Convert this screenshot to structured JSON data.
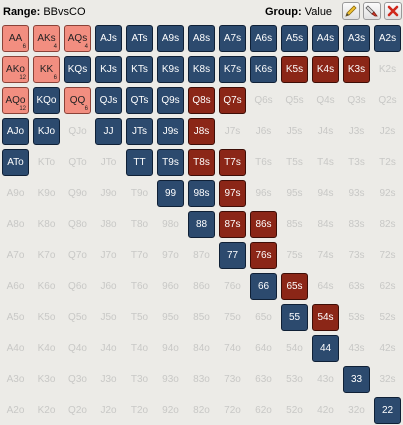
{
  "header": {
    "range_label": "Range:",
    "range_value": "BBvsCO",
    "group_label": "Group:",
    "group_value": "Value"
  },
  "tools": [
    {
      "name": "edit-tool-button",
      "icon": "pencil-icon"
    },
    {
      "name": "eraser-tool-button",
      "icon": "eraser-icon"
    },
    {
      "name": "clear-range-button",
      "icon": "close-icon"
    }
  ],
  "colors": {
    "value": "#2c4a6e",
    "bluff": "#8b2617",
    "mixed": "#f28e80",
    "empty_text": "#c8c8c6"
  },
  "rows": [
    [
      {
        "l": "AA",
        "s": "salmon",
        "c": "6"
      },
      {
        "l": "AKs",
        "s": "salmon",
        "c": "4"
      },
      {
        "l": "AQs",
        "s": "salmon",
        "c": "4"
      },
      {
        "l": "AJs",
        "s": "blue"
      },
      {
        "l": "ATs",
        "s": "blue"
      },
      {
        "l": "A9s",
        "s": "blue"
      },
      {
        "l": "A8s",
        "s": "blue"
      },
      {
        "l": "A7s",
        "s": "blue"
      },
      {
        "l": "A6s",
        "s": "blue"
      },
      {
        "l": "A5s",
        "s": "blue"
      },
      {
        "l": "A4s",
        "s": "blue"
      },
      {
        "l": "A3s",
        "s": "blue"
      },
      {
        "l": "A2s",
        "s": "blue"
      }
    ],
    [
      {
        "l": "AKo",
        "s": "salmon",
        "c": "12"
      },
      {
        "l": "KK",
        "s": "salmon",
        "c": "6"
      },
      {
        "l": "KQs",
        "s": "blue"
      },
      {
        "l": "KJs",
        "s": "blue"
      },
      {
        "l": "KTs",
        "s": "blue"
      },
      {
        "l": "K9s",
        "s": "blue"
      },
      {
        "l": "K8s",
        "s": "blue"
      },
      {
        "l": "K7s",
        "s": "blue"
      },
      {
        "l": "K6s",
        "s": "blue"
      },
      {
        "l": "K5s",
        "s": "red"
      },
      {
        "l": "K4s",
        "s": "red"
      },
      {
        "l": "K3s",
        "s": "red"
      },
      {
        "l": "K2s",
        "s": "empty"
      }
    ],
    [
      {
        "l": "AQo",
        "s": "salmon",
        "c": "12"
      },
      {
        "l": "KQo",
        "s": "blue"
      },
      {
        "l": "QQ",
        "s": "salmon",
        "c": "6"
      },
      {
        "l": "QJs",
        "s": "blue"
      },
      {
        "l": "QTs",
        "s": "blue"
      },
      {
        "l": "Q9s",
        "s": "blue"
      },
      {
        "l": "Q8s",
        "s": "red"
      },
      {
        "l": "Q7s",
        "s": "red"
      },
      {
        "l": "Q6s",
        "s": "empty"
      },
      {
        "l": "Q5s",
        "s": "empty"
      },
      {
        "l": "Q4s",
        "s": "empty"
      },
      {
        "l": "Q3s",
        "s": "empty"
      },
      {
        "l": "Q2s",
        "s": "empty"
      }
    ],
    [
      {
        "l": "AJo",
        "s": "blue"
      },
      {
        "l": "KJo",
        "s": "blue"
      },
      {
        "l": "QJo",
        "s": "empty"
      },
      {
        "l": "JJ",
        "s": "blue"
      },
      {
        "l": "JTs",
        "s": "blue"
      },
      {
        "l": "J9s",
        "s": "blue"
      },
      {
        "l": "J8s",
        "s": "red"
      },
      {
        "l": "J7s",
        "s": "empty"
      },
      {
        "l": "J6s",
        "s": "empty"
      },
      {
        "l": "J5s",
        "s": "empty"
      },
      {
        "l": "J4s",
        "s": "empty"
      },
      {
        "l": "J3s",
        "s": "empty"
      },
      {
        "l": "J2s",
        "s": "empty"
      }
    ],
    [
      {
        "l": "ATo",
        "s": "blue"
      },
      {
        "l": "KTo",
        "s": "empty"
      },
      {
        "l": "QTo",
        "s": "empty"
      },
      {
        "l": "JTo",
        "s": "empty"
      },
      {
        "l": "TT",
        "s": "blue"
      },
      {
        "l": "T9s",
        "s": "blue"
      },
      {
        "l": "T8s",
        "s": "red"
      },
      {
        "l": "T7s",
        "s": "red"
      },
      {
        "l": "T6s",
        "s": "empty"
      },
      {
        "l": "T5s",
        "s": "empty"
      },
      {
        "l": "T4s",
        "s": "empty"
      },
      {
        "l": "T3s",
        "s": "empty"
      },
      {
        "l": "T2s",
        "s": "empty"
      }
    ],
    [
      {
        "l": "A9o",
        "s": "empty"
      },
      {
        "l": "K9o",
        "s": "empty"
      },
      {
        "l": "Q9o",
        "s": "empty"
      },
      {
        "l": "J9o",
        "s": "empty"
      },
      {
        "l": "T9o",
        "s": "empty"
      },
      {
        "l": "99",
        "s": "blue"
      },
      {
        "l": "98s",
        "s": "blue"
      },
      {
        "l": "97s",
        "s": "red"
      },
      {
        "l": "96s",
        "s": "empty"
      },
      {
        "l": "95s",
        "s": "empty"
      },
      {
        "l": "94s",
        "s": "empty"
      },
      {
        "l": "93s",
        "s": "empty"
      },
      {
        "l": "92s",
        "s": "empty"
      }
    ],
    [
      {
        "l": "A8o",
        "s": "empty"
      },
      {
        "l": "K8o",
        "s": "empty"
      },
      {
        "l": "Q8o",
        "s": "empty"
      },
      {
        "l": "J8o",
        "s": "empty"
      },
      {
        "l": "T8o",
        "s": "empty"
      },
      {
        "l": "98o",
        "s": "empty"
      },
      {
        "l": "88",
        "s": "blue"
      },
      {
        "l": "87s",
        "s": "red"
      },
      {
        "l": "86s",
        "s": "red"
      },
      {
        "l": "85s",
        "s": "empty"
      },
      {
        "l": "84s",
        "s": "empty"
      },
      {
        "l": "83s",
        "s": "empty"
      },
      {
        "l": "82s",
        "s": "empty"
      }
    ],
    [
      {
        "l": "A7o",
        "s": "empty"
      },
      {
        "l": "K7o",
        "s": "empty"
      },
      {
        "l": "Q7o",
        "s": "empty"
      },
      {
        "l": "J7o",
        "s": "empty"
      },
      {
        "l": "T7o",
        "s": "empty"
      },
      {
        "l": "97o",
        "s": "empty"
      },
      {
        "l": "87o",
        "s": "empty"
      },
      {
        "l": "77",
        "s": "blue"
      },
      {
        "l": "76s",
        "s": "red"
      },
      {
        "l": "75s",
        "s": "empty"
      },
      {
        "l": "74s",
        "s": "empty"
      },
      {
        "l": "73s",
        "s": "empty"
      },
      {
        "l": "72s",
        "s": "empty"
      }
    ],
    [
      {
        "l": "A6o",
        "s": "empty"
      },
      {
        "l": "K6o",
        "s": "empty"
      },
      {
        "l": "Q6o",
        "s": "empty"
      },
      {
        "l": "J6o",
        "s": "empty"
      },
      {
        "l": "T6o",
        "s": "empty"
      },
      {
        "l": "96o",
        "s": "empty"
      },
      {
        "l": "86o",
        "s": "empty"
      },
      {
        "l": "76o",
        "s": "empty"
      },
      {
        "l": "66",
        "s": "blue"
      },
      {
        "l": "65s",
        "s": "red"
      },
      {
        "l": "64s",
        "s": "empty"
      },
      {
        "l": "63s",
        "s": "empty"
      },
      {
        "l": "62s",
        "s": "empty"
      }
    ],
    [
      {
        "l": "A5o",
        "s": "empty"
      },
      {
        "l": "K5o",
        "s": "empty"
      },
      {
        "l": "Q5o",
        "s": "empty"
      },
      {
        "l": "J5o",
        "s": "empty"
      },
      {
        "l": "T5o",
        "s": "empty"
      },
      {
        "l": "95o",
        "s": "empty"
      },
      {
        "l": "85o",
        "s": "empty"
      },
      {
        "l": "75o",
        "s": "empty"
      },
      {
        "l": "65o",
        "s": "empty"
      },
      {
        "l": "55",
        "s": "blue"
      },
      {
        "l": "54s",
        "s": "red"
      },
      {
        "l": "53s",
        "s": "empty"
      },
      {
        "l": "52s",
        "s": "empty"
      }
    ],
    [
      {
        "l": "A4o",
        "s": "empty"
      },
      {
        "l": "K4o",
        "s": "empty"
      },
      {
        "l": "Q4o",
        "s": "empty"
      },
      {
        "l": "J4o",
        "s": "empty"
      },
      {
        "l": "T4o",
        "s": "empty"
      },
      {
        "l": "94o",
        "s": "empty"
      },
      {
        "l": "84o",
        "s": "empty"
      },
      {
        "l": "74o",
        "s": "empty"
      },
      {
        "l": "64o",
        "s": "empty"
      },
      {
        "l": "54o",
        "s": "empty"
      },
      {
        "l": "44",
        "s": "blue"
      },
      {
        "l": "43s",
        "s": "empty"
      },
      {
        "l": "42s",
        "s": "empty"
      }
    ],
    [
      {
        "l": "A3o",
        "s": "empty"
      },
      {
        "l": "K3o",
        "s": "empty"
      },
      {
        "l": "Q3o",
        "s": "empty"
      },
      {
        "l": "J3o",
        "s": "empty"
      },
      {
        "l": "T3o",
        "s": "empty"
      },
      {
        "l": "93o",
        "s": "empty"
      },
      {
        "l": "83o",
        "s": "empty"
      },
      {
        "l": "73o",
        "s": "empty"
      },
      {
        "l": "63o",
        "s": "empty"
      },
      {
        "l": "53o",
        "s": "empty"
      },
      {
        "l": "43o",
        "s": "empty"
      },
      {
        "l": "33",
        "s": "blue"
      },
      {
        "l": "32s",
        "s": "empty"
      }
    ],
    [
      {
        "l": "A2o",
        "s": "empty"
      },
      {
        "l": "K2o",
        "s": "empty"
      },
      {
        "l": "Q2o",
        "s": "empty"
      },
      {
        "l": "J2o",
        "s": "empty"
      },
      {
        "l": "T2o",
        "s": "empty"
      },
      {
        "l": "92o",
        "s": "empty"
      },
      {
        "l": "82o",
        "s": "empty"
      },
      {
        "l": "72o",
        "s": "empty"
      },
      {
        "l": "62o",
        "s": "empty"
      },
      {
        "l": "52o",
        "s": "empty"
      },
      {
        "l": "42o",
        "s": "empty"
      },
      {
        "l": "32o",
        "s": "empty"
      },
      {
        "l": "22",
        "s": "blue"
      }
    ]
  ]
}
